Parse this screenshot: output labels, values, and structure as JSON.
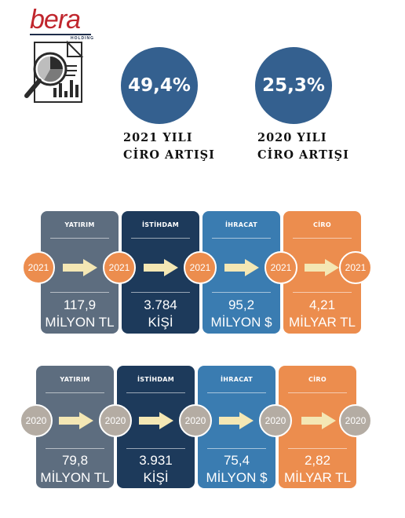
{
  "logo": {
    "word": "bera",
    "sub": "HOLDING"
  },
  "highlights": [
    {
      "value": "49,4%",
      "caption_line1": "2021 YILI",
      "caption_line2": "CİRO ARTIŞI"
    },
    {
      "value": "25,3%",
      "caption_line1": "2020 YILI",
      "caption_line2": "CİRO ARTIŞI"
    }
  ],
  "colors": {
    "circle": "#34608f",
    "gray": "#5d6d7f",
    "navy": "#1d3a5b",
    "blue": "#3a7cb1",
    "orange": "#ec8d4e",
    "badge_2020": "#b4aca3",
    "arrow": "#f4e7b4"
  },
  "row2021": {
    "year": "2021",
    "cards": [
      {
        "title": "YATIRIM",
        "value": "117,9",
        "unit": "MİLYON TL"
      },
      {
        "title": "İSTİHDAM",
        "value": "3.784",
        "unit": "KİŞİ"
      },
      {
        "title": "İHRACAT",
        "value": "95,2",
        "unit": "MİLYON $"
      },
      {
        "title": "CİRO",
        "value": "4,21",
        "unit": "MİLYAR TL"
      }
    ]
  },
  "row2020": {
    "year": "2020",
    "cards": [
      {
        "title": "YATIRIM",
        "value": "79,8",
        "unit": "MİLYON TL"
      },
      {
        "title": "İSTİHDAM",
        "value": "3.931",
        "unit": "KİŞİ"
      },
      {
        "title": "İHRACAT",
        "value": "75,4",
        "unit": "MİLYON $"
      },
      {
        "title": "CİRO",
        "value": "2,82",
        "unit": "MİLYAR TL"
      }
    ]
  }
}
